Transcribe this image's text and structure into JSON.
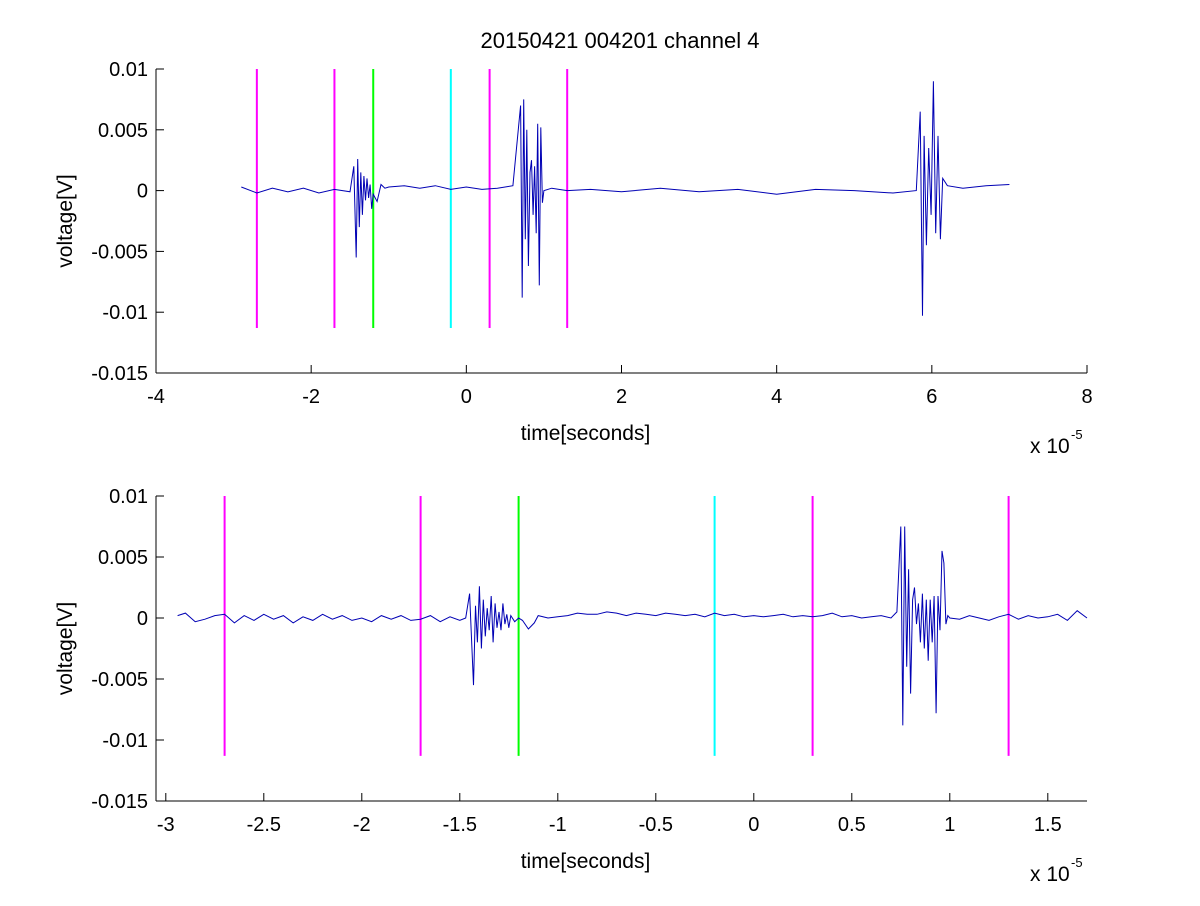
{
  "figure": {
    "title": "20150421 004201 channel 4"
  },
  "chart_data": [
    {
      "type": "line",
      "title": "20150421 004201 channel 4",
      "xlabel": "time[seconds]",
      "ylabel": "voltage[V]",
      "x_multiplier_label": "x 10",
      "x_multiplier_exp": "-5",
      "xlim": [
        -4,
        8
      ],
      "ylim": [
        -0.015,
        0.01
      ],
      "xticks": [
        -4,
        -2,
        0,
        2,
        4,
        6,
        8
      ],
      "xtick_labels": [
        "-4",
        "-2",
        "0",
        "2",
        "4",
        "6",
        "8"
      ],
      "yticks": [
        -0.015,
        -0.01,
        -0.005,
        0,
        0.005,
        0.01
      ],
      "ytick_labels": [
        "-0.015",
        "-0.01",
        "-0.005",
        "0",
        "0.005",
        "0.01"
      ],
      "grid": false,
      "series": [
        {
          "color": "#0000b4",
          "x": [
            -2.9,
            -2.7,
            -2.5,
            -2.3,
            -2.1,
            -1.9,
            -1.7,
            -1.5,
            -1.45,
            -1.42,
            -1.4,
            -1.38,
            -1.36,
            -1.34,
            -1.32,
            -1.3,
            -1.28,
            -1.26,
            -1.24,
            -1.22,
            -1.2,
            -1.15,
            -1.1,
            -1.05,
            -1.0,
            -0.8,
            -0.6,
            -0.4,
            -0.2,
            0.0,
            0.2,
            0.4,
            0.6,
            0.7,
            0.72,
            0.74,
            0.76,
            0.78,
            0.8,
            0.82,
            0.84,
            0.86,
            0.88,
            0.9,
            0.92,
            0.94,
            0.96,
            0.98,
            1.0,
            1.1,
            1.3,
            1.6,
            2.0,
            2.5,
            3.0,
            3.5,
            4.0,
            4.5,
            5.0,
            5.5,
            5.8,
            5.85,
            5.88,
            5.9,
            5.93,
            5.96,
            5.99,
            6.02,
            6.05,
            6.08,
            6.11,
            6.14,
            6.2,
            6.4,
            6.7,
            7.0
          ],
          "y": [
            0.0003,
            -0.0002,
            0.0002,
            -0.0001,
            0.0002,
            -0.0002,
            0.0001,
            -0.0001,
            0.002,
            -0.0055,
            0.0026,
            -0.003,
            0.0015,
            -0.002,
            0.0012,
            -0.0008,
            0.001,
            -0.0006,
            0.0005,
            -0.0015,
            -0.0003,
            -0.0009,
            0.0005,
            0.0002,
            0.0003,
            0.0004,
            0.0002,
            0.0004,
            0.0001,
            0.0003,
            0.0001,
            0.0002,
            0.0004,
            0.007,
            -0.0088,
            0.0075,
            -0.004,
            0.005,
            -0.0062,
            0.0015,
            0.0025,
            -0.002,
            0.002,
            -0.0035,
            0.0055,
            -0.0078,
            0.0052,
            -0.001,
            0.0,
            0.0002,
            0.0,
            0.0001,
            -0.0001,
            0.0002,
            -0.0001,
            0.0001,
            -0.0003,
            0.0001,
            0.0,
            -0.0002,
            0.0,
            0.0065,
            -0.0103,
            0.0045,
            -0.0045,
            0.0035,
            -0.002,
            0.009,
            -0.0035,
            0.0045,
            -0.004,
            0.001,
            0.0004,
            0.0002,
            0.0004,
            0.0005
          ]
        }
      ],
      "markers": [
        {
          "x": -2.7,
          "color": "#ff00ff"
        },
        {
          "x": -1.7,
          "color": "#ff00ff"
        },
        {
          "x": -1.2,
          "color": "#00ff00"
        },
        {
          "x": -0.2,
          "color": "#00ffff"
        },
        {
          "x": 0.3,
          "color": "#ff00ff"
        },
        {
          "x": 1.3,
          "color": "#ff00ff"
        }
      ],
      "marker_y_range": [
        -0.0113,
        0.01
      ]
    },
    {
      "type": "line",
      "title": "",
      "xlabel": "time[seconds]",
      "ylabel": "voltage[V]",
      "x_multiplier_label": "x 10",
      "x_multiplier_exp": "-5",
      "xlim": [
        -3.05,
        1.7
      ],
      "ylim": [
        -0.015,
        0.01
      ],
      "xticks": [
        -3,
        -2.5,
        -2,
        -1.5,
        -1,
        -0.5,
        0,
        0.5,
        1,
        1.5
      ],
      "xtick_labels": [
        "-3",
        "-2.5",
        "-2",
        "-1.5",
        "-1",
        "-0.5",
        "0",
        "0.5",
        "1",
        "1.5"
      ],
      "yticks": [
        -0.015,
        -0.01,
        -0.005,
        0,
        0.005,
        0.01
      ],
      "ytick_labels": [
        "-0.015",
        "-0.01",
        "-0.005",
        "0",
        "0.005",
        "0.01"
      ],
      "grid": false,
      "series": [
        {
          "color": "#0000b4",
          "x": [
            -2.94,
            -2.9,
            -2.85,
            -2.8,
            -2.75,
            -2.7,
            -2.65,
            -2.6,
            -2.55,
            -2.5,
            -2.45,
            -2.4,
            -2.35,
            -2.3,
            -2.25,
            -2.2,
            -2.15,
            -2.1,
            -2.05,
            -2.0,
            -1.95,
            -1.9,
            -1.85,
            -1.8,
            -1.75,
            -1.7,
            -1.65,
            -1.6,
            -1.55,
            -1.5,
            -1.47,
            -1.45,
            -1.43,
            -1.42,
            -1.41,
            -1.4,
            -1.39,
            -1.38,
            -1.37,
            -1.36,
            -1.35,
            -1.34,
            -1.33,
            -1.32,
            -1.31,
            -1.3,
            -1.29,
            -1.28,
            -1.27,
            -1.26,
            -1.25,
            -1.24,
            -1.22,
            -1.2,
            -1.18,
            -1.15,
            -1.12,
            -1.1,
            -1.05,
            -1.0,
            -0.95,
            -0.9,
            -0.85,
            -0.8,
            -0.75,
            -0.7,
            -0.65,
            -0.6,
            -0.55,
            -0.5,
            -0.45,
            -0.4,
            -0.35,
            -0.3,
            -0.25,
            -0.2,
            -0.15,
            -0.1,
            -0.05,
            0.0,
            0.05,
            0.1,
            0.15,
            0.2,
            0.25,
            0.3,
            0.35,
            0.4,
            0.45,
            0.5,
            0.55,
            0.6,
            0.65,
            0.7,
            0.73,
            0.75,
            0.76,
            0.77,
            0.78,
            0.79,
            0.8,
            0.81,
            0.82,
            0.83,
            0.84,
            0.85,
            0.86,
            0.87,
            0.88,
            0.89,
            0.9,
            0.91,
            0.92,
            0.93,
            0.94,
            0.95,
            0.96,
            0.97,
            0.98,
            0.99,
            1.0,
            1.05,
            1.1,
            1.15,
            1.2,
            1.25,
            1.3,
            1.35,
            1.4,
            1.45,
            1.5,
            1.55,
            1.6,
            1.65,
            1.7
          ],
          "y": [
            0.0002,
            0.0004,
            -0.0003,
            -0.0001,
            0.0002,
            0.0003,
            -0.0004,
            0.0002,
            -0.0002,
            0.0003,
            -0.0001,
            0.0002,
            -0.0004,
            0.0001,
            -0.0002,
            0.0003,
            -0.0001,
            0.0002,
            -0.0002,
            0.0,
            -0.0003,
            0.0002,
            -0.0001,
            0.0002,
            -0.0002,
            -0.0001,
            0.0002,
            -0.0003,
            0.0001,
            -0.0002,
            0.0,
            0.002,
            -0.0055,
            0.001,
            -0.002,
            0.0026,
            -0.0025,
            0.0015,
            -0.0015,
            0.0008,
            -0.001,
            0.0018,
            -0.002,
            0.0012,
            -0.0008,
            0.0005,
            -0.001,
            0.0012,
            -0.0005,
            0.0003,
            -0.0008,
            0.0002,
            -0.0003,
            0.0,
            -0.0002,
            -0.0009,
            -0.0004,
            0.0002,
            0.0,
            0.0001,
            0.0002,
            0.0004,
            0.0003,
            0.0003,
            0.0005,
            0.0004,
            0.0002,
            0.0004,
            0.0003,
            0.0002,
            0.0004,
            0.0003,
            0.0002,
            0.0003,
            0.0001,
            0.0004,
            0.0002,
            0.0003,
            0.0001,
            0.0002,
            0.0001,
            0.0002,
            0.0003,
            0.0001,
            0.0002,
            0.0001,
            0.0002,
            0.0004,
            0.0001,
            0.0002,
            0.0,
            0.0001,
            0.0002,
            0.0,
            0.0005,
            0.0075,
            -0.0088,
            0.0075,
            -0.004,
            0.004,
            -0.0062,
            0.0015,
            0.0025,
            -0.0005,
            0.0012,
            -0.002,
            0.002,
            -0.0025,
            0.0015,
            -0.0035,
            0.0015,
            -0.002,
            0.0018,
            -0.0078,
            0.0018,
            -0.001,
            0.0055,
            0.0045,
            -0.0005,
            0.0002,
            0.0,
            -0.0001,
            0.0002,
            0.0,
            -0.0002,
            0.0001,
            0.0003,
            -0.0001,
            0.0002,
            0.0,
            0.0001,
            0.0003,
            -0.0002,
            0.0006,
            0.0
          ]
        }
      ],
      "markers": [
        {
          "x": -2.7,
          "color": "#ff00ff"
        },
        {
          "x": -1.7,
          "color": "#ff00ff"
        },
        {
          "x": -1.2,
          "color": "#00ff00"
        },
        {
          "x": -0.2,
          "color": "#00ffff"
        },
        {
          "x": 0.3,
          "color": "#ff00ff"
        },
        {
          "x": 1.3,
          "color": "#ff00ff"
        }
      ],
      "marker_y_range": [
        -0.0113,
        0.01
      ]
    }
  ]
}
